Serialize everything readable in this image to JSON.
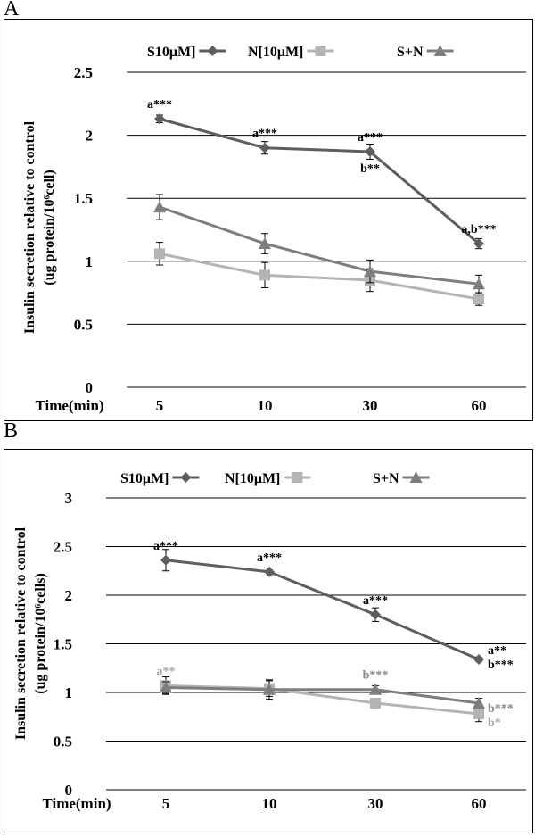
{
  "panels": [
    {
      "panel_label": "A",
      "legend": [
        {
          "name": "S10μM]",
          "color": "#5e5e5e",
          "marker": "diamond"
        },
        {
          "name": "N[10μM]",
          "color": "#b4b4b4",
          "marker": "square"
        },
        {
          "name": "S+N",
          "color": "#7e7e7e",
          "marker": "triangle"
        }
      ],
      "xlabel": "Time(min)",
      "ylabel_line1": "Insulin secretion relative to control",
      "ylabel_line2": "(ug protein/10⁶cell)",
      "yticks": [
        "0",
        "0.5",
        "1",
        "1.5",
        "2",
        "2.5"
      ],
      "annotations": [
        {
          "text": "a***",
          "x": "5",
          "y": 2.13,
          "placement": "above",
          "color": "#000000"
        },
        {
          "text": "a***",
          "x": "10",
          "y": 1.9,
          "placement": "above",
          "color": "#000000"
        },
        {
          "text": "a***",
          "x": "30",
          "y": 1.87,
          "placement": "above",
          "color": "#000000"
        },
        {
          "text": "b**",
          "x": "30",
          "y": 1.87,
          "placement": "below",
          "color": "#000000"
        },
        {
          "text": "a,b***",
          "x": "60",
          "y": 1.14,
          "placement": "above",
          "color": "#000000"
        }
      ]
    },
    {
      "panel_label": "B",
      "legend": [
        {
          "name": "S10μM]",
          "color": "#5e5e5e",
          "marker": "diamond"
        },
        {
          "name": "N[10μM]",
          "color": "#b4b4b4",
          "marker": "square"
        },
        {
          "name": "S+N",
          "color": "#7e7e7e",
          "marker": "triangle"
        }
      ],
      "xlabel": "Time(min)",
      "ylabel_line1": "Insulin secretion relative to control",
      "ylabel_line2": "(ug protein/10⁶cells)",
      "yticks": [
        "0",
        "0.5",
        "1",
        "1.5",
        "2",
        "2.5",
        "3"
      ],
      "annotations": [
        {
          "text": "a***",
          "x": "5",
          "y": 2.36,
          "placement": "above",
          "color": "#000000"
        },
        {
          "text": "a***",
          "x": "10",
          "y": 2.24,
          "placement": "above",
          "color": "#000000"
        },
        {
          "text": "a***",
          "x": "30",
          "y": 1.8,
          "placement": "above",
          "color": "#000000"
        },
        {
          "text": "a**",
          "x": "60",
          "y": 1.34,
          "placement": "above-right",
          "color": "#000000"
        },
        {
          "text": "b***",
          "x": "60",
          "y": 1.34,
          "placement": "right",
          "color": "#000000"
        },
        {
          "text": "a**",
          "x": "5",
          "y": 1.07,
          "placement": "above",
          "color": "#a8a8a8"
        },
        {
          "text": "b***",
          "x": "30",
          "y": 1.03,
          "placement": "above",
          "color": "#8a8a8a"
        },
        {
          "text": "b***",
          "x": "60",
          "y": 0.89,
          "placement": "right",
          "color": "#8a8a8a"
        },
        {
          "text": "b*",
          "x": "60",
          "y": 0.78,
          "placement": "right-below",
          "color": "#a8a8a8"
        }
      ]
    }
  ],
  "chart_data": [
    {
      "type": "line",
      "categories": [
        "5",
        "10",
        "30",
        "60"
      ],
      "ylim": [
        0,
        2.5
      ],
      "grid": true,
      "legend_placement": "top",
      "series": [
        {
          "name": "S10μM]",
          "values": [
            2.13,
            1.9,
            1.87,
            1.14
          ],
          "errors": [
            0.03,
            0.05,
            0.06,
            0.04
          ]
        },
        {
          "name": "N[10μM]",
          "values": [
            1.06,
            0.89,
            0.85,
            0.7
          ],
          "errors": [
            0.09,
            0.1,
            0.09,
            0.05
          ]
        },
        {
          "name": "S+N",
          "values": [
            1.43,
            1.14,
            0.92,
            0.82
          ],
          "errors": [
            0.1,
            0.08,
            0.09,
            0.07
          ]
        }
      ]
    },
    {
      "type": "line",
      "categories": [
        "5",
        "10",
        "30",
        "60"
      ],
      "ylim": [
        0,
        3
      ],
      "grid": true,
      "legend_placement": "top",
      "series": [
        {
          "name": "S10μM]",
          "values": [
            2.36,
            2.24,
            1.8,
            1.34
          ],
          "errors": [
            0.11,
            0.04,
            0.07,
            0.02
          ]
        },
        {
          "name": "N[10μM]",
          "values": [
            1.07,
            1.04,
            0.89,
            0.78
          ],
          "errors": [
            0.09,
            0.08,
            0.05,
            0.08
          ]
        },
        {
          "name": "S+N",
          "values": [
            1.05,
            1.03,
            1.03,
            0.89
          ],
          "errors": [
            0.06,
            0.1,
            0.04,
            0.05
          ]
        }
      ]
    }
  ]
}
